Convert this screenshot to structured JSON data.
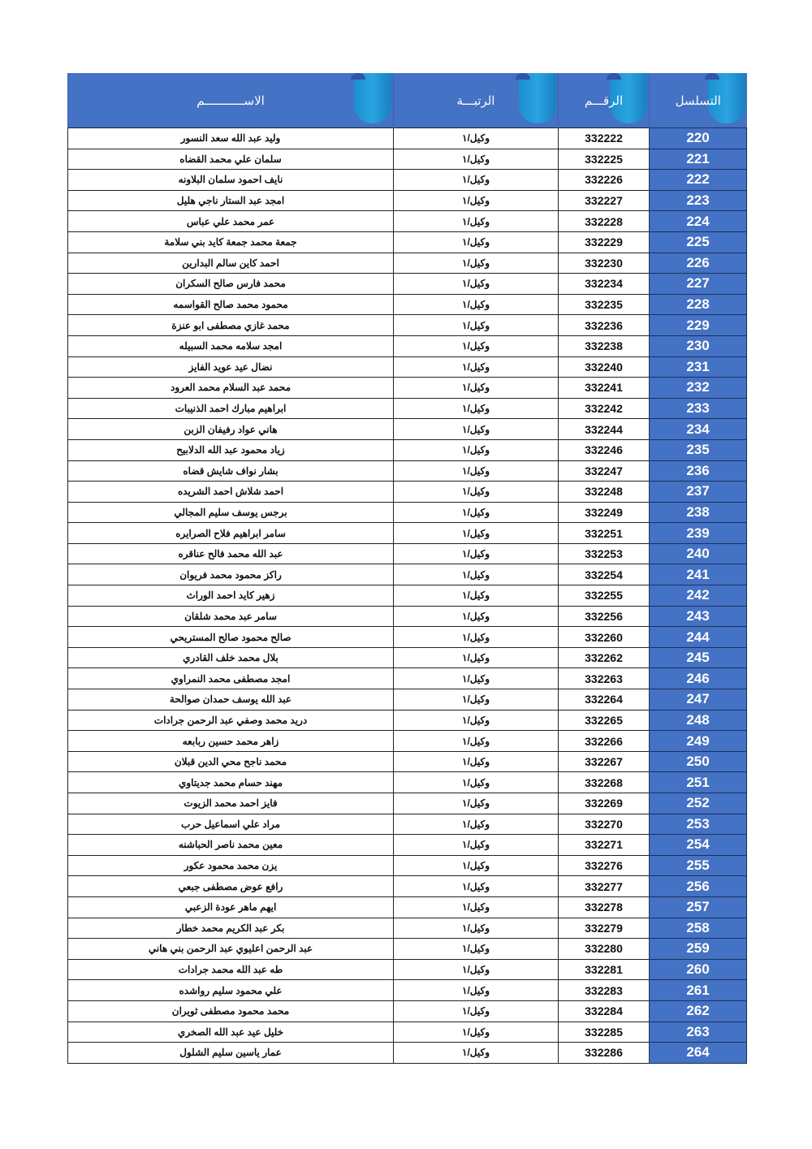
{
  "table": {
    "headers": {
      "serial": "التسلسل",
      "number": "الرقـــم",
      "rank": "الرتبـــة",
      "name": "الاســـــــــــم"
    },
    "header_color": "#4472c4",
    "rows": [
      {
        "serial": "220",
        "number": "332222",
        "rank": "وكيل/١",
        "name": "وليد عبد الله سعد النسور"
      },
      {
        "serial": "221",
        "number": "332225",
        "rank": "وكيل/١",
        "name": "سلمان علي محمد القضاه"
      },
      {
        "serial": "222",
        "number": "332226",
        "rank": "وكيل/١",
        "name": "نايف احمود سلمان البلاونه"
      },
      {
        "serial": "223",
        "number": "332227",
        "rank": "وكيل/١",
        "name": "امجد عبد الستار ناجي هليل"
      },
      {
        "serial": "224",
        "number": "332228",
        "rank": "وكيل/١",
        "name": "عمر محمد علي عباس"
      },
      {
        "serial": "225",
        "number": "332229",
        "rank": "وكيل/١",
        "name": "جمعة محمد جمعة كايد بني سلامة"
      },
      {
        "serial": "226",
        "number": "332230",
        "rank": "وكيل/١",
        "name": "احمد كاين سالم البدارين"
      },
      {
        "serial": "227",
        "number": "332234",
        "rank": "وكيل/١",
        "name": "محمد فارس صالح السكران"
      },
      {
        "serial": "228",
        "number": "332235",
        "rank": "وكيل/١",
        "name": "محمود محمد صالح القواسمه"
      },
      {
        "serial": "229",
        "number": "332236",
        "rank": "وكيل/١",
        "name": "محمد غازي مصطفى ابو عنزة"
      },
      {
        "serial": "230",
        "number": "332238",
        "rank": "وكيل/١",
        "name": "امجد سلامه محمد السبيله"
      },
      {
        "serial": "231",
        "number": "332240",
        "rank": "وكيل/١",
        "name": "نضال عيد عويد الفايز"
      },
      {
        "serial": "232",
        "number": "332241",
        "rank": "وكيل/١",
        "name": "محمد عبد السلام محمد العرود"
      },
      {
        "serial": "233",
        "number": "332242",
        "rank": "وكيل/١",
        "name": "ابراهيم مبارك احمد الذنيبات"
      },
      {
        "serial": "234",
        "number": "332244",
        "rank": "وكيل/١",
        "name": "هاني عواد رفيفان الزبن"
      },
      {
        "serial": "235",
        "number": "332246",
        "rank": "وكيل/١",
        "name": "زياد محمود عبد الله الدلابيح"
      },
      {
        "serial": "236",
        "number": "332247",
        "rank": "وكيل/١",
        "name": "بشار نواف شايش قضاه"
      },
      {
        "serial": "237",
        "number": "332248",
        "rank": "وكيل/١",
        "name": "احمد شلاش احمد الشريده"
      },
      {
        "serial": "238",
        "number": "332249",
        "rank": "وكيل/١",
        "name": "برجس يوسف سليم المجالي"
      },
      {
        "serial": "239",
        "number": "332251",
        "rank": "وكيل/١",
        "name": "سامر ابراهيم فلاح الصرايره"
      },
      {
        "serial": "240",
        "number": "332253",
        "rank": "وكيل/١",
        "name": "عبد الله محمد فالح عناقره"
      },
      {
        "serial": "241",
        "number": "332254",
        "rank": "وكيل/١",
        "name": "راكز محمود محمد فريوان"
      },
      {
        "serial": "242",
        "number": "332255",
        "rank": "وكيل/١",
        "name": "زهير كايد احمد الوراث"
      },
      {
        "serial": "243",
        "number": "332256",
        "rank": "وكيل/١",
        "name": "سامر عبد محمد شلقان"
      },
      {
        "serial": "244",
        "number": "332260",
        "rank": "وكيل/١",
        "name": "صالح محمود صالح المستريحي"
      },
      {
        "serial": "245",
        "number": "332262",
        "rank": "وكيل/١",
        "name": "بلال محمد خلف القادري"
      },
      {
        "serial": "246",
        "number": "332263",
        "rank": "وكيل/١",
        "name": "امجد مصطفى محمد النمراوي"
      },
      {
        "serial": "247",
        "number": "332264",
        "rank": "وكيل/١",
        "name": "عبد الله يوسف حمدان صوالحة"
      },
      {
        "serial": "248",
        "number": "332265",
        "rank": "وكيل/١",
        "name": "دريد محمد وصفي عبد الرحمن جرادات"
      },
      {
        "serial": "249",
        "number": "332266",
        "rank": "وكيل/١",
        "name": "زاهر محمد حسين ربابعه"
      },
      {
        "serial": "250",
        "number": "332267",
        "rank": "وكيل/١",
        "name": "محمد ناجح محي الدين قبلان"
      },
      {
        "serial": "251",
        "number": "332268",
        "rank": "وكيل/١",
        "name": "مهند حسام محمد جديتاوي"
      },
      {
        "serial": "252",
        "number": "332269",
        "rank": "وكيل/١",
        "name": "فايز احمد محمد الزيوت"
      },
      {
        "serial": "253",
        "number": "332270",
        "rank": "وكيل/١",
        "name": "مراد علي اسماعيل حرب"
      },
      {
        "serial": "254",
        "number": "332271",
        "rank": "وكيل/١",
        "name": "معين محمد ناصر الحباشنه"
      },
      {
        "serial": "255",
        "number": "332276",
        "rank": "وكيل/١",
        "name": "يزن محمد محمود عكور"
      },
      {
        "serial": "256",
        "number": "332277",
        "rank": "وكيل/١",
        "name": "رافع عوض مصطفى جبعي"
      },
      {
        "serial": "257",
        "number": "332278",
        "rank": "وكيل/١",
        "name": "ايهم ماهر عودة الزعبي"
      },
      {
        "serial": "258",
        "number": "332279",
        "rank": "وكيل/١",
        "name": "بكر عبد الكريم محمد خطار"
      },
      {
        "serial": "259",
        "number": "332280",
        "rank": "وكيل/١",
        "name": "عبد الرحمن اعليوي عبد الرحمن بني هاني"
      },
      {
        "serial": "260",
        "number": "332281",
        "rank": "وكيل/١",
        "name": "طه عبد الله محمد جرادات"
      },
      {
        "serial": "261",
        "number": "332283",
        "rank": "وكيل/١",
        "name": "علي محمود سليم رواشده"
      },
      {
        "serial": "262",
        "number": "332284",
        "rank": "وكيل/١",
        "name": "محمد محمود مصطفى ثويران"
      },
      {
        "serial": "263",
        "number": "332285",
        "rank": "وكيل/١",
        "name": "خليل عيد عبد الله الصخري"
      },
      {
        "serial": "264",
        "number": "332286",
        "rank": "وكيل/١",
        "name": "عمار ياسين سليم الشلول"
      }
    ]
  }
}
